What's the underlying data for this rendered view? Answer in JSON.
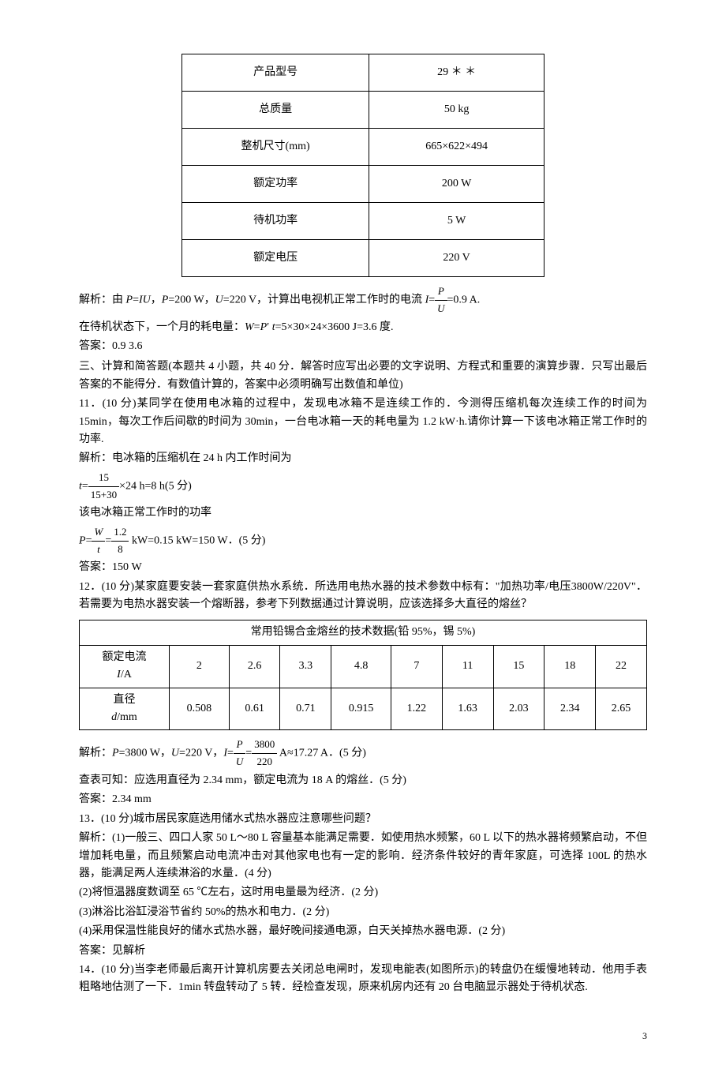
{
  "product_table": {
    "rows": [
      {
        "label": "产品型号",
        "value": "29 ＊ ＊"
      },
      {
        "label": "总质量",
        "value": "50 kg"
      },
      {
        "label": "整机尺寸(mm)",
        "value": "665×622×494"
      },
      {
        "label": "额定功率",
        "value": "200 W"
      },
      {
        "label": "待机功率",
        "value": "5 W"
      },
      {
        "label": "额定电压",
        "value": "220 V"
      }
    ]
  },
  "analysis1": {
    "prefix": "解析：由 ",
    "formula1a": "P",
    "formula1b": "=",
    "formula1c": "IU",
    "formula1d": "，",
    "formula2a": "P",
    "formula2b": "=200 W，",
    "formula3a": "U",
    "formula3b": "=220 V，计算出电视机正常工作时的电流 ",
    "formula4a": "I",
    "formula4b": "=",
    "frac_num": "P",
    "frac_den": "U",
    "formula4c": "=0.9 A."
  },
  "line2": {
    "prefix": "在待机状态下，一个月的耗电量：",
    "w": "W",
    "eq": "=",
    "p": "P",
    "prime": "′",
    "t": "t",
    "rest": "=5×30×24×3600 J=3.6 度."
  },
  "answer1": "答案：0.9  3.6",
  "section3_heading": "三、计算和简答题(本题共 4 小题，共 40 分．解答时应写出必要的文字说明、方程式和重要的演算步骤．只写出最后答案的不能得分．有数值计算的，答案中必须明确写出数值和单位)",
  "q11": {
    "text": "11．(10 分)某同学在使用电冰箱的过程中，发现电冰箱不是连续工作的．今测得压缩机每次连续工作的时间为 15min，每次工作后间歇的时间为 30min，一台电冰箱一天的耗电量为 1.2 kW·h.请你计算一下该电冰箱正常工作时的功率.",
    "analysis_label": "解析：电冰箱的压缩机在 24 h 内工作时间为",
    "t_label": "t",
    "t_eq": "=",
    "t_frac_num": "15",
    "t_frac_den": "15+30",
    "t_rest": "×24 h=8 h(5 分)",
    "power_label": "该电冰箱正常工作时的功率",
    "p_label": "P",
    "p_eq": "=",
    "p_frac1_num": "W",
    "p_frac1_den": "t",
    "p_mid": "=",
    "p_frac2_num": "1.2",
    "p_frac2_den": "8",
    "p_rest": " kW=0.15 kW=150 W．(5 分)",
    "answer": "答案：150 W"
  },
  "q12": {
    "text": "12．(10 分)某家庭要安装一套家庭供热水系统．所选用电热水器的技术参数中标有：\"加热功率/电压3800W/220V\"．若需要为电热水器安装一个熔断器，参考下列数据通过计算说明，应该选择多大直径的熔丝？",
    "table_title": "常用铅锡合金熔丝的技术数据(铅 95%，锡 5%)",
    "row1_label": "额定电流 ",
    "row1_label_var": "I",
    "row1_label_unit": "/A",
    "row2_label": "直径",
    "row2_label_var": "d",
    "row2_label_unit": "/mm",
    "currents": [
      "2",
      "2.6",
      "3.3",
      "4.8",
      "7",
      "11",
      "15",
      "18",
      "22"
    ],
    "diameters": [
      "0.508",
      "0.61",
      "0.71",
      "0.915",
      "1.22",
      "1.63",
      "2.03",
      "2.34",
      "2.65"
    ],
    "analysis_prefix": "解析：",
    "p_var": "P",
    "p_val": "=3800 W，",
    "u_var": "U",
    "u_val": "=220 V，",
    "i_var": "I",
    "i_eq": "=",
    "frac1_num": "P",
    "frac1_den": "U",
    "mid_eq": "=",
    "frac2_num": "3800",
    "frac2_den": "220",
    "rest": " A≈17.27 A．(5 分)",
    "lookup": "查表可知：应选用直径为 2.34 mm，额定电流为 18 A 的熔丝．(5 分)",
    "answer": "答案：2.34 mm"
  },
  "q13": {
    "text": "13．(10 分)城市居民家庭选用储水式热水器应注意哪些问题？",
    "analysis1": "解析：(1)一般三、四口人家 50 L～80 L 容量基本能满足需要．如使用热水频繁，60 L 以下的热水器将频繁启动，不但增加耗电量，而且频繁启动电流冲击对其他家电也有一定的影响．经济条件较好的青年家庭，可选择 100L 的热水器，能满足两人连续淋浴的水量．(4 分)",
    "analysis2": "(2)将恒温器度数调至 65 ℃左右，这时用电量最为经济．(2 分)",
    "analysis3": "(3)淋浴比浴缸浸浴节省约 50%的热水和电力．(2 分)",
    "analysis4": "(4)采用保温性能良好的储水式热水器，最好晚间接通电源，白天关掉热水器电源．(2 分)",
    "answer": "答案：见解析"
  },
  "q14": {
    "text": "14．(10 分)当李老师最后离开计算机房要去关闭总电闸时，发现电能表(如图所示)的转盘仍在缓慢地转动．他用手表粗略地估测了一下．1min 转盘转动了 5 转．经检查发现，原来机房内还有 20 台电脑显示器处于待机状态."
  },
  "page_number": "3"
}
